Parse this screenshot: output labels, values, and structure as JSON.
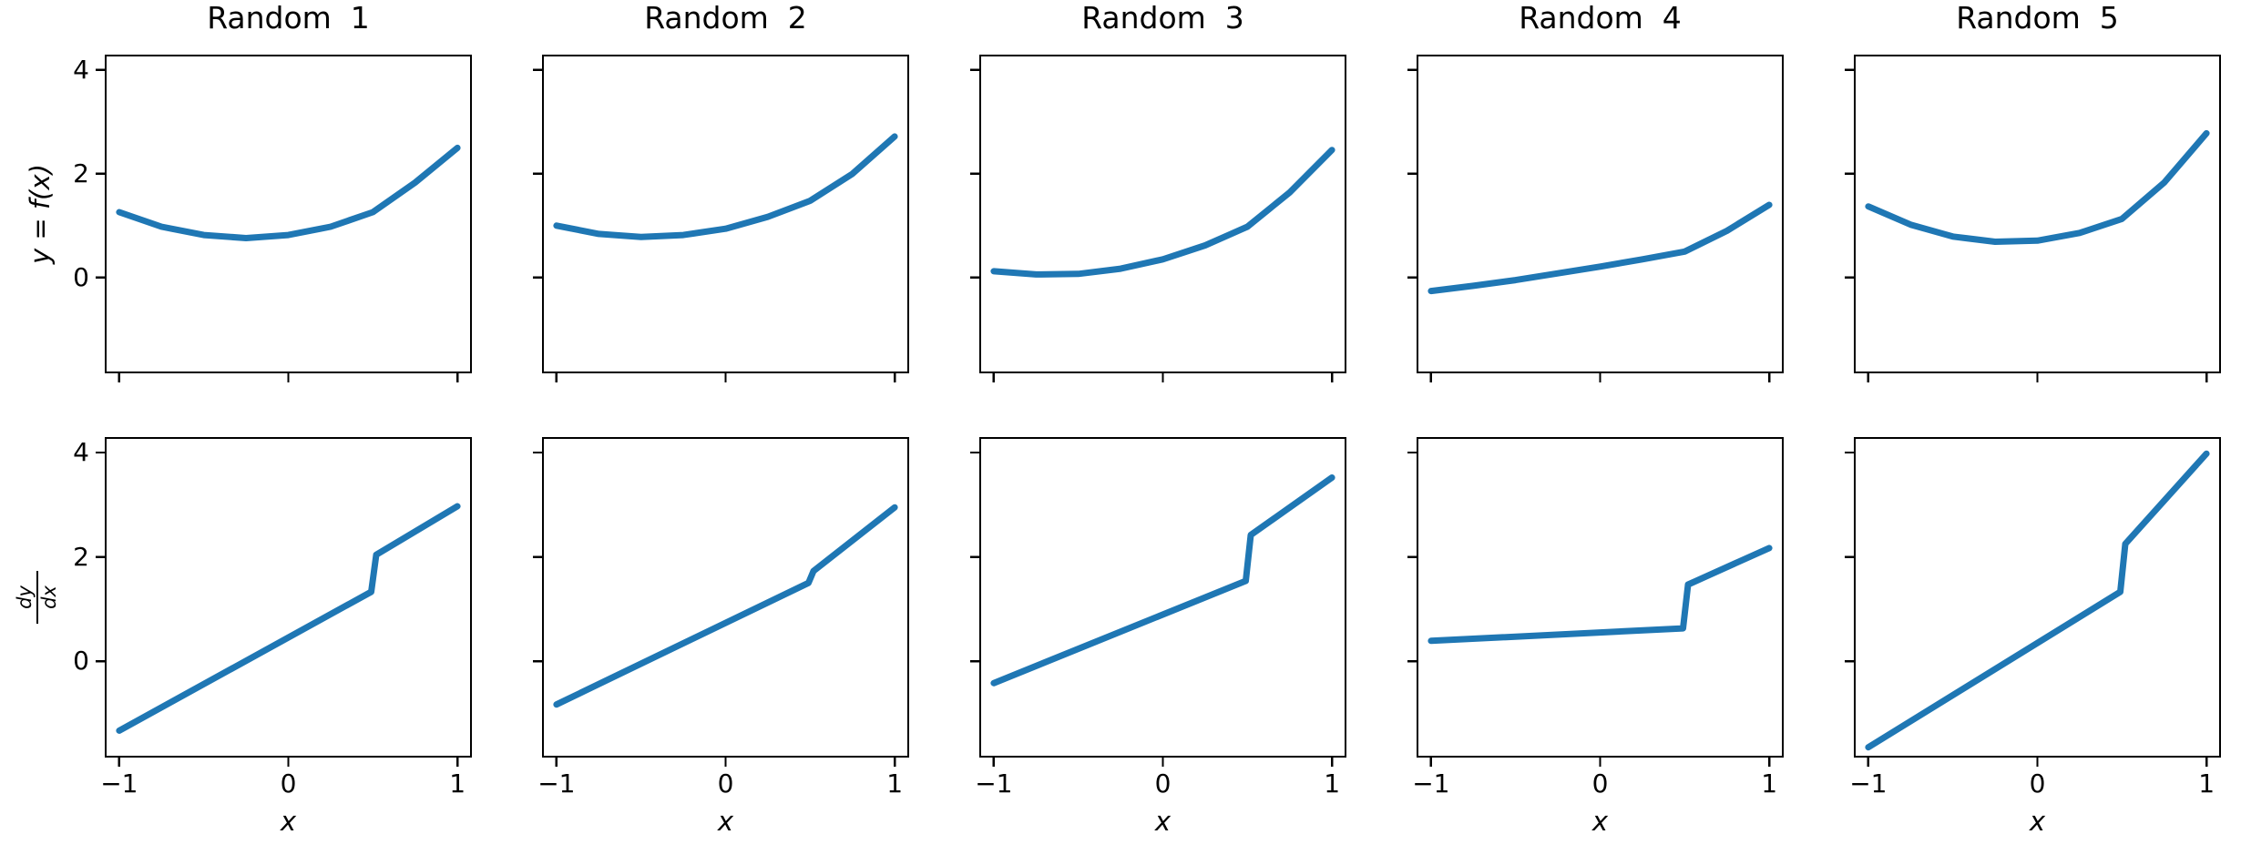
{
  "figure": {
    "background": "#ffffff",
    "spine_color": "#000000",
    "text_color": "#000000"
  },
  "chart_data": {
    "type": "line",
    "grid": "2 rows x 5 columns, no gridlines, no legend, shared x and y axes",
    "titles": [
      "Random  1",
      "Random  2",
      "Random  3",
      "Random  4",
      "Random  5"
    ],
    "x_label": "x",
    "y_label_top": "y = f(x)",
    "y_label_bottom": {
      "numerator": "dy",
      "denominator": "dx"
    },
    "x_ticks": [
      -1,
      0,
      1
    ],
    "x_tick_labels": [
      "−1",
      "0",
      "1"
    ],
    "y_ticks": [
      4,
      2,
      0
    ],
    "y_tick_labels": [
      "4",
      "2",
      "0"
    ],
    "xlim": [
      -1.08,
      1.08
    ],
    "ylim": [
      -1.83,
      4.28
    ],
    "line_color": "#1f77b4",
    "line_width": 7,
    "top_row": [
      {
        "name": "f(x) Random 1",
        "points": [
          [
            -1,
            1.26
          ],
          [
            -0.75,
            0.98
          ],
          [
            -0.5,
            0.82
          ],
          [
            -0.25,
            0.76
          ],
          [
            0,
            0.82
          ],
          [
            0.25,
            0.98
          ],
          [
            0.5,
            1.26
          ],
          [
            0.75,
            1.83
          ],
          [
            1,
            2.5
          ]
        ]
      },
      {
        "name": "f(x) Random 2",
        "points": [
          [
            -1,
            1.0
          ],
          [
            -0.75,
            0.84
          ],
          [
            -0.5,
            0.78
          ],
          [
            -0.25,
            0.82
          ],
          [
            0,
            0.94
          ],
          [
            0.25,
            1.17
          ],
          [
            0.5,
            1.48
          ],
          [
            0.75,
            2.0
          ],
          [
            1,
            2.72
          ]
        ]
      },
      {
        "name": "f(x) Random 3",
        "points": [
          [
            -1,
            0.12
          ],
          [
            -0.75,
            0.06
          ],
          [
            -0.5,
            0.07
          ],
          [
            -0.25,
            0.17
          ],
          [
            0,
            0.35
          ],
          [
            0.25,
            0.62
          ],
          [
            0.5,
            0.98
          ],
          [
            0.75,
            1.64
          ],
          [
            1,
            2.46
          ]
        ]
      },
      {
        "name": "f(x) Random 4",
        "points": [
          [
            -1,
            -0.26
          ],
          [
            -0.75,
            -0.16
          ],
          [
            -0.5,
            -0.05
          ],
          [
            -0.25,
            0.08
          ],
          [
            0,
            0.21
          ],
          [
            0.25,
            0.35
          ],
          [
            0.5,
            0.5
          ],
          [
            0.75,
            0.9
          ],
          [
            1,
            1.4
          ]
        ]
      },
      {
        "name": "f(x) Random 5",
        "points": [
          [
            -1,
            1.37
          ],
          [
            -0.75,
            1.02
          ],
          [
            -0.5,
            0.79
          ],
          [
            -0.25,
            0.69
          ],
          [
            0,
            0.71
          ],
          [
            0.25,
            0.86
          ],
          [
            0.5,
            1.13
          ],
          [
            0.75,
            1.83
          ],
          [
            1,
            2.78
          ]
        ]
      }
    ],
    "bottom_row": [
      {
        "name": "dy/dx Random 1",
        "points": [
          [
            -1,
            -1.33
          ],
          [
            0.49,
            1.33
          ],
          [
            0.52,
            2.04
          ],
          [
            1,
            2.97
          ]
        ]
      },
      {
        "name": "dy/dx Random 2",
        "points": [
          [
            -1,
            -0.83
          ],
          [
            0.49,
            1.5
          ],
          [
            0.52,
            1.73
          ],
          [
            1,
            2.95
          ]
        ]
      },
      {
        "name": "dy/dx Random 3",
        "points": [
          [
            -1,
            -0.42
          ],
          [
            0.49,
            1.54
          ],
          [
            0.52,
            2.42
          ],
          [
            1,
            3.52
          ]
        ]
      },
      {
        "name": "dy/dx Random 4",
        "points": [
          [
            -1,
            0.39
          ],
          [
            0.49,
            0.63
          ],
          [
            0.52,
            1.47
          ],
          [
            1,
            2.17
          ]
        ]
      },
      {
        "name": "dy/dx Random 5",
        "points": [
          [
            -1,
            -1.65
          ],
          [
            0.49,
            1.33
          ],
          [
            0.52,
            2.25
          ],
          [
            1,
            3.98
          ]
        ]
      }
    ]
  }
}
